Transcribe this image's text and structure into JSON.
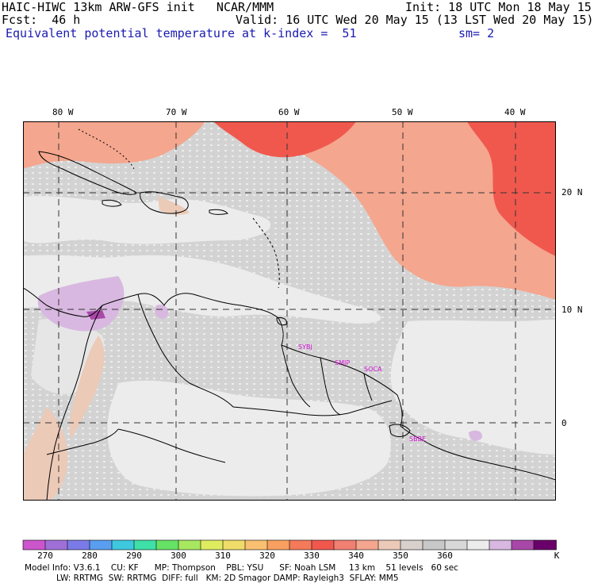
{
  "header": {
    "title_left": "HAIC-HIWC 13km ARW-GFS init   NCAR/MMM",
    "init": "Init: 18 UTC Mon 18 May 15",
    "fcst": "Fcst:  46 h",
    "valid": "Valid: 16 UTC Wed 20 May 15 (13 LST Wed 20 May 15)",
    "field": "Equivalent potential temperature",
    "level": "at k-index =  51",
    "smooth": "sm= 2"
  },
  "map": {
    "lon_labels": [
      "80 W",
      "70 W",
      "60 W",
      "50 W",
      "40 W"
    ],
    "lat_labels": [
      "20 N",
      "10 N",
      "0"
    ],
    "stations": [
      "SYBJ",
      "SMJP",
      "SOCA",
      "SBBE"
    ]
  },
  "colorbar": {
    "labels": [
      "270",
      "280",
      "290",
      "300",
      "310",
      "320",
      "330",
      "340",
      "350",
      "360",
      "K"
    ],
    "colors": [
      "#cc55cc",
      "#a070d8",
      "#7a7ae8",
      "#5a9ef0",
      "#3ec8e0",
      "#3ee0a8",
      "#66e266",
      "#a8e860",
      "#e0ec60",
      "#f0dc68",
      "#f8c070",
      "#f8a060",
      "#f47a5a",
      "#f0584e",
      "#f08072",
      "#f4a68e",
      "#eccab8",
      "#d8d0cc",
      "#c8c8c8",
      "#d8d8d8",
      "#ececec",
      "#d8b8e0",
      "#a848a8",
      "#6a006a"
    ]
  },
  "footer": {
    "line1": "Model Info: V3.6.1    CU: KF      MP: Thompson    PBL: YSU      SF: Noah LSM     13 km    51 levels   60 sec",
    "line2": "            LW: RRTMG  SW: RRTMG  DIFF: full   KM: 2D Smagor DAMP: Rayleigh3  SFLAY: MM5"
  }
}
